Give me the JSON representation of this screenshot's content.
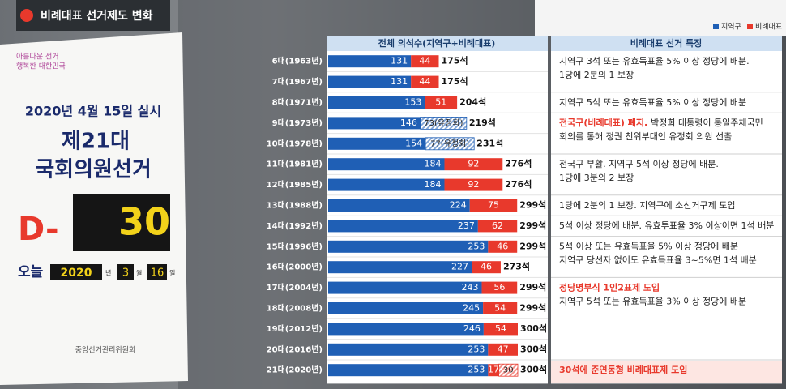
{
  "header": {
    "title": "비례대표 선거제도 변화"
  },
  "photo": {
    "slogan": [
      "아름다운 선거",
      "행복한 대한민국"
    ],
    "date": "2020년 4월 15일 실시",
    "election": [
      "제21대",
      "국회의원선거"
    ],
    "dday": "D-",
    "count": "30",
    "today": "오늘",
    "year": "2020",
    "year_unit": "년",
    "month": "3",
    "month_unit": "월",
    "day": "16",
    "day_unit": "일",
    "org": "중앙선거관리위원회"
  },
  "chart_data": {
    "type": "bar",
    "stacked": true,
    "orientation": "horizontal",
    "column_titles": [
      "전체 의석수(지역구+비례대표)",
      "비례대표 선거 특징"
    ],
    "categories": [
      "6대(1963년)",
      "7대(1967년)",
      "8대(1971년)",
      "9대(1973년)",
      "10대(1978년)",
      "11대(1981년)",
      "12대(1985년)",
      "13대(1988년)",
      "14대(1992년)",
      "15대(1996년)",
      "16대(2000년)",
      "17대(2004년)",
      "18대(2008년)",
      "19대(2012년)",
      "20대(2016년)",
      "21대(2020년)"
    ],
    "legend": "top-right",
    "series": [
      {
        "name": "지역구",
        "color": "#1f5fb5",
        "values": [
          131,
          131,
          153,
          146,
          154,
          184,
          184,
          224,
          237,
          253,
          227,
          243,
          245,
          246,
          253,
          253
        ]
      },
      {
        "name": "비례대표",
        "color": "#e8392c",
        "values": [
          44,
          44,
          51,
          null,
          null,
          92,
          92,
          75,
          62,
          46,
          46,
          56,
          54,
          54,
          47,
          17
        ]
      },
      {
        "pattern": "hatch",
        "values": [
          null,
          null,
          null,
          73,
          77,
          null,
          null,
          null,
          null,
          null,
          null,
          null,
          null,
          null,
          null,
          30
        ],
        "value_labels": [
          null,
          null,
          null,
          "73(유정회)",
          "77(유정회)",
          null,
          null,
          null,
          null,
          null,
          null,
          null,
          null,
          null,
          null,
          "30"
        ],
        "colors": [
          null,
          null,
          null,
          "#1f5fb5",
          "#1f5fb5",
          null,
          null,
          null,
          null,
          null,
          null,
          null,
          null,
          null,
          null,
          "#e8392c"
        ]
      }
    ],
    "totals": {
      "values": [
        175,
        175,
        204,
        219,
        231,
        276,
        276,
        299,
        299,
        299,
        273,
        299,
        299,
        300,
        300,
        300
      ],
      "value_labels": [
        "175석",
        "175석",
        "204석",
        "219석",
        "231석",
        "276석",
        "276석",
        "299석",
        "299석",
        "299석",
        "273석",
        "299석",
        "299석",
        "300석",
        "300석",
        "300석"
      ]
    },
    "notes": [
      {
        "lines": [
          "지역구 3석 또는 유효득표율 5% 이상 정당에 배분.",
          "1당에 2분의 1 보장"
        ]
      },
      {
        "lines": [
          "지역구 5석 또는 유효득표율 5% 이상 정당에 배분"
        ]
      },
      {
        "highlight": "전국구(비례대표) 폐지.",
        "highlight_inline": true,
        "lines": [
          "박정희 대통령이 통일주체국민",
          "회의를 통해 정권 친위부대인 유정회 의원 선출"
        ]
      },
      {
        "lines": [
          "전국구 부활. 지역구 5석 이상 정당에 배분.",
          "1당에 3분의 2 보장"
        ]
      },
      {
        "lines": [
          "1당에 2분의 1 보장. 지역구에 소선거구제 도입"
        ]
      },
      {
        "lines": [
          "5석 이상 정당에 배분. 유효투표율 3% 이상이면 1석 배분"
        ]
      },
      {
        "lines": [
          "5석 이상 또는 유효득표율 5% 이상 정당에 배분",
          "지역구 당선자 없어도 유효득표율 3~5%면 1석 배분"
        ]
      },
      {
        "highlight": "정당명부식 1인2표제 도입",
        "lines": [
          "지역구 5석 또는 유효득표율 3% 이상 정당에 배분"
        ]
      },
      {
        "highlight": "30석에 준연동형 비례대표제 도입",
        "lines": []
      }
    ]
  }
}
